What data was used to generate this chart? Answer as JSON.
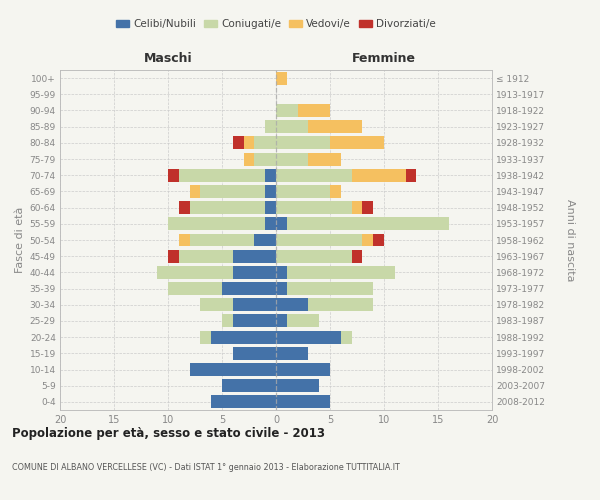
{
  "age_groups": [
    "0-4",
    "5-9",
    "10-14",
    "15-19",
    "20-24",
    "25-29",
    "30-34",
    "35-39",
    "40-44",
    "45-49",
    "50-54",
    "55-59",
    "60-64",
    "65-69",
    "70-74",
    "75-79",
    "80-84",
    "85-89",
    "90-94",
    "95-99",
    "100+"
  ],
  "birth_years": [
    "2008-2012",
    "2003-2007",
    "1998-2002",
    "1993-1997",
    "1988-1992",
    "1983-1987",
    "1978-1982",
    "1973-1977",
    "1968-1972",
    "1963-1967",
    "1958-1962",
    "1953-1957",
    "1948-1952",
    "1943-1947",
    "1938-1942",
    "1933-1937",
    "1928-1932",
    "1923-1927",
    "1918-1922",
    "1913-1917",
    "≤ 1912"
  ],
  "males": {
    "celibi": [
      6,
      5,
      8,
      4,
      6,
      4,
      4,
      5,
      4,
      4,
      2,
      1,
      1,
      1,
      1,
      0,
      0,
      0,
      0,
      0,
      0
    ],
    "coniugati": [
      0,
      0,
      0,
      0,
      1,
      1,
      3,
      5,
      7,
      5,
      6,
      9,
      7,
      6,
      8,
      2,
      2,
      1,
      0,
      0,
      0
    ],
    "vedovi": [
      0,
      0,
      0,
      0,
      0,
      0,
      0,
      0,
      0,
      0,
      1,
      0,
      0,
      1,
      0,
      1,
      1,
      0,
      0,
      0,
      0
    ],
    "divorziati": [
      0,
      0,
      0,
      0,
      0,
      0,
      0,
      0,
      0,
      1,
      0,
      0,
      1,
      0,
      1,
      0,
      1,
      0,
      0,
      0,
      0
    ]
  },
  "females": {
    "nubili": [
      5,
      4,
      5,
      3,
      6,
      1,
      3,
      1,
      1,
      0,
      0,
      1,
      0,
      0,
      0,
      0,
      0,
      0,
      0,
      0,
      0
    ],
    "coniugate": [
      0,
      0,
      0,
      0,
      1,
      3,
      6,
      8,
      10,
      7,
      8,
      15,
      7,
      5,
      7,
      3,
      5,
      3,
      2,
      0,
      0
    ],
    "vedove": [
      0,
      0,
      0,
      0,
      0,
      0,
      0,
      0,
      0,
      0,
      1,
      0,
      1,
      1,
      5,
      3,
      5,
      5,
      3,
      0,
      1
    ],
    "divorziate": [
      0,
      0,
      0,
      0,
      0,
      0,
      0,
      0,
      0,
      1,
      1,
      0,
      1,
      0,
      1,
      0,
      0,
      0,
      0,
      0,
      0
    ]
  },
  "colors": {
    "celibi_nubili": "#4472a8",
    "coniugati": "#c8d8a8",
    "vedovi": "#f5c060",
    "divorziati": "#c0312b"
  },
  "xlim": 20,
  "xtick_step": 5,
  "title": "Popolazione per età, sesso e stato civile - 2013",
  "subtitle": "COMUNE DI ALBANO VERCELLESE (VC) - Dati ISTAT 1° gennaio 2013 - Elaborazione TUTTITALIA.IT",
  "ylabel_left": "Fasce di età",
  "ylabel_right": "Anni di nascita",
  "xlabel_left": "Maschi",
  "xlabel_right": "Femmine",
  "legend_labels": [
    "Celibi/Nubili",
    "Coniugati/e",
    "Vedovi/e",
    "Divorziati/e"
  ],
  "bg_color": "#f5f5f0",
  "grid_color": "#cccccc",
  "tick_color": "#888888",
  "spine_color": "#bbbbbb"
}
